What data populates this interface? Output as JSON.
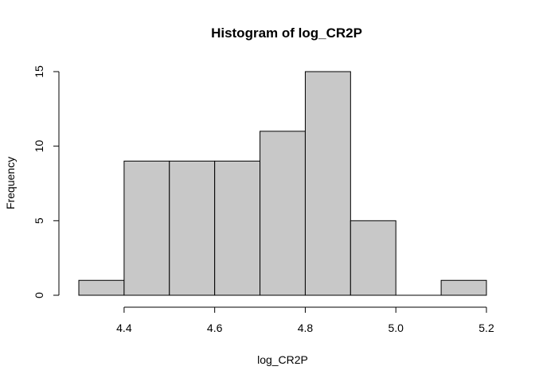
{
  "chart_data": {
    "type": "bar",
    "title": "Histogram of log_CR2P",
    "xlabel": "log_CR2P",
    "ylabel": "Frequency",
    "bins": [
      {
        "start": 4.3,
        "end": 4.4,
        "count": 1
      },
      {
        "start": 4.4,
        "end": 4.5,
        "count": 9
      },
      {
        "start": 4.5,
        "end": 4.6,
        "count": 9
      },
      {
        "start": 4.6,
        "end": 4.7,
        "count": 9
      },
      {
        "start": 4.7,
        "end": 4.8,
        "count": 11
      },
      {
        "start": 4.8,
        "end": 4.9,
        "count": 15
      },
      {
        "start": 4.9,
        "end": 5.0,
        "count": 5
      },
      {
        "start": 5.0,
        "end": 5.1,
        "count": 0
      },
      {
        "start": 5.1,
        "end": 5.2,
        "count": 1
      }
    ],
    "xlim": [
      4.3,
      5.2
    ],
    "ylim": [
      0,
      15
    ],
    "x_ticks": [
      "4.4",
      "4.6",
      "4.8",
      "5.0",
      "5.2"
    ],
    "y_ticks": [
      "0",
      "5",
      "10",
      "15"
    ],
    "bar_color": "#c8c8c8",
    "grid": false,
    "legend": "none"
  }
}
